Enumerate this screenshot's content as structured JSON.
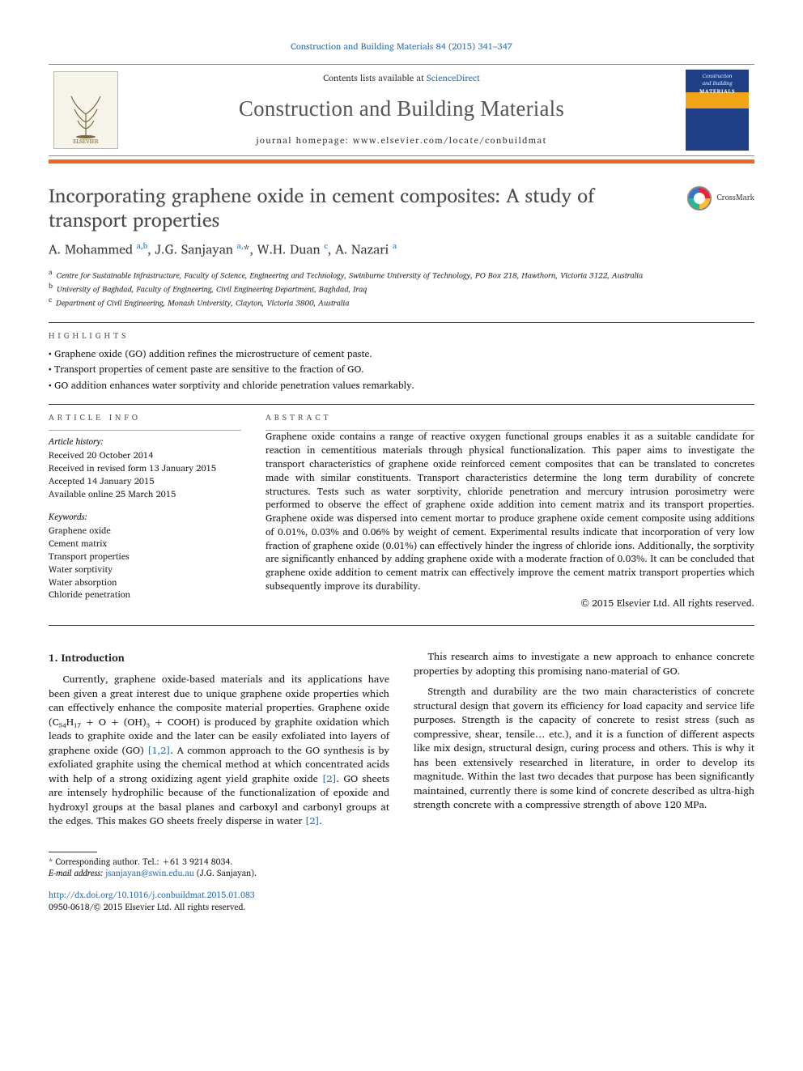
{
  "citation": "Construction and Building Materials 84 (2015) 341–347",
  "header": {
    "contents_prefix": "Contents lists available at ",
    "contents_link": "ScienceDirect",
    "journal_title": "Construction and Building Materials",
    "homepage_label": "journal homepage: www.elsevier.com/locate/conbuildmat",
    "publisher_mark": "ELSEVIER",
    "cover_line1": "Construction",
    "cover_line2": "and Building",
    "cover_line3": "MATERIALS"
  },
  "crossmark_label": "CrossMark",
  "article": {
    "title": "Incorporating graphene oxide in cement composites: A study of transport properties",
    "authors_html": "A. Mohammed <sup>a,b</sup>, J.G. Sanjayan <sup>a,</sup>*, W.H. Duan <sup>c</sup>, A. Nazari <sup>a</sup>",
    "affiliations": [
      {
        "sup": "a",
        "text": "Centre for Sustainable Infrastructure, Faculty of Science, Engineering and Technology, Swinburne University of Technology, PO Box 218, Hawthorn, Victoria 3122, Australia"
      },
      {
        "sup": "b",
        "text": "University of Baghdad, Faculty of Engineering, Civil Engineering Department, Baghdad, Iraq"
      },
      {
        "sup": "c",
        "text": "Department of Civil Engineering, Monash University, Clayton, Victoria 3800, Australia"
      }
    ]
  },
  "highlights_label": "HIGHLIGHTS",
  "highlights": [
    "Graphene oxide (GO) addition refines the microstructure of cement paste.",
    "Transport properties of cement paste are sensitive to the fraction of GO.",
    "GO addition enhances water sorptivity and chloride penetration values remarkably."
  ],
  "article_info_label": "ARTICLE INFO",
  "abstract_label": "ABSTRACT",
  "history_head": "Article history:",
  "history": [
    "Received 20 October 2014",
    "Received in revised form 13 January 2015",
    "Accepted 14 January 2015",
    "Available online 25 March 2015"
  ],
  "keywords_head": "Keywords:",
  "keywords": [
    "Graphene oxide",
    "Cement matrix",
    "Transport properties",
    "Water sorptivity",
    "Water absorption",
    "Chloride penetration"
  ],
  "abstract": "Graphene oxide contains a range of reactive oxygen functional groups enables it as a suitable candidate for reaction in cementitious materials through physical functionalization. This paper aims to investigate the transport characteristics of graphene oxide reinforced cement composites that can be translated to concretes made with similar constituents. Transport characteristics determine the long term durability of concrete structures. Tests such as water sorptivity, chloride penetration and mercury intrusion porosimetry were performed to observe the effect of graphene oxide addition into cement matrix and its transport properties. Graphene oxide was dispersed into cement mortar to produce graphene oxide cement composite using additions of 0.01%, 0.03% and 0.06% by weight of cement. Experimental results indicate that incorporation of very low fraction of graphene oxide (0.01%) can effectively hinder the ingress of chloride ions. Additionally, the sorptivity are significantly enhanced by adding graphene oxide with a moderate fraction of 0.03%. It can be concluded that graphene oxide addition to cement matrix can effectively improve the cement matrix transport properties which subsequently improve its durability.",
  "copyright": "© 2015 Elsevier Ltd. All rights reserved.",
  "intro_heading": "1. Introduction",
  "intro_p1_a": "Currently, graphene oxide-based materials and its applications have been given a great interest due to unique graphene oxide properties which can effectively enhance the composite material properties. Graphene oxide (C₅₄H₁₇ + O + (OH)₃ + COOH) is produced by graphite oxidation which leads to graphite oxide and the later can be easily exfoliated into layers of graphene oxide (GO) ",
  "intro_ref1": "[1,2]",
  "intro_p1_b": ". A common approach to the GO synthesis is by exfoliated graphite using the chemical method at which concentrated acids with help of a strong oxidizing agent yield graphite oxide ",
  "intro_ref2": "[2]",
  "intro_p1_c": ". GO sheets are intensely hydrophilic because of the functionalization of epoxide and hydroxyl groups at the basal planes and carboxyl ",
  "intro_p1_d": "and carbonyl groups at the edges. This makes GO sheets freely disperse in water ",
  "intro_ref3": "[2]",
  "intro_p1_e": ".",
  "intro_p2": "This research aims to investigate a new approach to enhance concrete properties by adopting this promising nano-material of GO.",
  "intro_p3": "Strength and durability are the two main characteristics of concrete structural design that govern its efficiency for load capacity and service life purposes. Strength is the capacity of concrete to resist stress (such as compressive, shear, tensile… etc.), and it is a function of different aspects like mix design, structural design, curing process and others. This is why it has been extensively researched in literature, in order to develop its magnitude. Within the last two decades that purpose has been significantly maintained, currently there is some kind of concrete described as ultra-high strength concrete with a compressive strength of above 120 MPa.",
  "footnote_corr": "* Corresponding author. Tel.: +61 3 9214 8034.",
  "footnote_email_label": "E-mail address: ",
  "footnote_email": "jsanjayan@swin.edu.au",
  "footnote_email_after": " (J.G. Sanjayan).",
  "doi": "http://dx.doi.org/10.1016/j.conbuildmat.2015.01.083",
  "issn_line": "0950-0618/© 2015 Elsevier Ltd. All rights reserved.",
  "colors": {
    "link": "#2a6db8",
    "accent_bar": "#e96a1f",
    "title_gray": "#4a4a4a"
  }
}
